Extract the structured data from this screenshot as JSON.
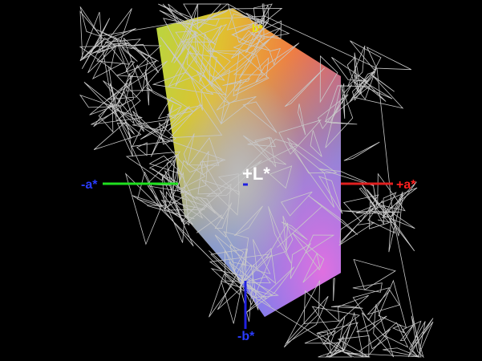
{
  "labels": {
    "minus_a": "-a*",
    "plus_a": "+a*",
    "minus_b": "-b*",
    "plus_b": "b*",
    "plus_l": "+L*"
  }
}
